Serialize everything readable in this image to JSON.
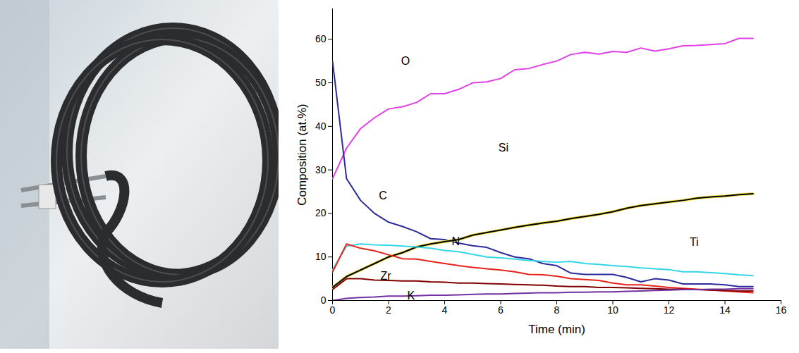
{
  "chart_data": {
    "type": "line",
    "xlabel": "Time (min)",
    "ylabel": "Composition (at.%)",
    "xlim": [
      0,
      16
    ],
    "xticks": [
      0,
      2,
      4,
      6,
      8,
      10,
      12,
      14,
      16
    ],
    "ylim": [
      0,
      67
    ],
    "yticks": [
      0,
      10,
      20,
      30,
      40,
      50,
      60
    ],
    "grid": false,
    "x": [
      0,
      0.5,
      1,
      1.5,
      2,
      2.5,
      3,
      3.5,
      4,
      4.5,
      5,
      5.5,
      6,
      6.5,
      7,
      7.5,
      8,
      8.5,
      9,
      9.5,
      10,
      10.5,
      11,
      11.5,
      12,
      12.5,
      13,
      13.5,
      14,
      14.5,
      15
    ],
    "series": [
      {
        "name": "O",
        "color": "#e040e6",
        "values": [
          28,
          35,
          39.5,
          42,
          44,
          44.5,
          45.5,
          47.5,
          47.5,
          48.5,
          50,
          50.2,
          51,
          53,
          53.3,
          54.2,
          55,
          56.5,
          57,
          56.6,
          57.2,
          57,
          58,
          57.3,
          57.8,
          58.5,
          58.6,
          58.8,
          59,
          60.2,
          60.2
        ]
      },
      {
        "name": "C",
        "color": "#2b2b9b",
        "values": [
          55,
          28,
          23,
          20,
          18,
          17,
          15.8,
          14.2,
          14,
          13.2,
          12.6,
          12.2,
          11,
          10,
          9.6,
          8.5,
          8,
          6.3,
          6,
          6,
          6,
          5.3,
          4.3,
          5,
          4.7,
          3.8,
          3.8,
          3.8,
          3.6,
          3.2,
          3.2
        ]
      },
      {
        "name": "Si",
        "color": "#000000",
        "values": [
          3,
          5.5,
          7,
          8.5,
          10,
          11,
          12.3,
          13,
          13.5,
          14,
          15,
          15.6,
          16.2,
          16.8,
          17.3,
          17.8,
          18.2,
          18.8,
          19.3,
          19.8,
          20.4,
          21.2,
          21.8,
          22.2,
          22.6,
          23,
          23.5,
          23.8,
          24,
          24.3,
          24.5
        ]
      },
      {
        "name": "Ti",
        "color": "#33d6e8",
        "values": [
          7,
          12.5,
          13,
          12.8,
          12.7,
          12.5,
          12.3,
          12,
          11.5,
          11.2,
          10.6,
          10,
          9.8,
          9.5,
          9.2,
          9,
          8.8,
          9,
          8.5,
          8.3,
          8,
          7.8,
          7.5,
          7.3,
          7.1,
          6.6,
          6.6,
          6.4,
          6.2,
          5.9,
          5.7
        ]
      },
      {
        "name": "N",
        "color": "#e8221a",
        "values": [
          6.5,
          13,
          12,
          11.4,
          10.5,
          9.6,
          9.5,
          9,
          8.5,
          8,
          7.6,
          7.3,
          7,
          6.6,
          6,
          5.9,
          5.6,
          5,
          4.8,
          4.6,
          4,
          3.6,
          3.6,
          3.3,
          3,
          2.8,
          2.6,
          2.4,
          2.2,
          2,
          1.8
        ]
      },
      {
        "name": "Zr",
        "color": "#800000",
        "values": [
          2.5,
          5,
          5,
          4.7,
          4.6,
          4.5,
          4.5,
          4.3,
          4.2,
          4,
          4,
          3.9,
          3.8,
          3.7,
          3.6,
          3.5,
          3.3,
          3.2,
          3.2,
          3,
          3,
          2.9,
          2.8,
          2.7,
          2.6,
          2.6,
          2.5,
          2.4,
          2.3,
          2.2,
          2.2
        ]
      },
      {
        "name": "K",
        "color": "#7030a0",
        "values": [
          0,
          0.5,
          0.7,
          0.8,
          1,
          1,
          1.1,
          1.2,
          1.2,
          1.3,
          1.4,
          1.5,
          1.5,
          1.6,
          1.7,
          1.8,
          1.8,
          1.9,
          1.9,
          2,
          2,
          2.1,
          2.2,
          2.3,
          2.4,
          2.5,
          2.5,
          2.6,
          2.6,
          2.7,
          2.7
        ]
      }
    ]
  }
}
